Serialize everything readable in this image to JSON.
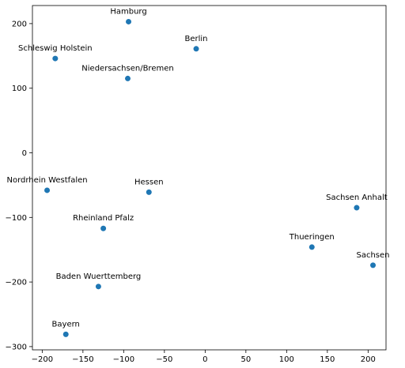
{
  "chart_data": {
    "type": "scatter",
    "title": "",
    "xlabel": "",
    "ylabel": "",
    "xlim": [
      -212,
      222
    ],
    "ylim": [
      -305,
      228
    ],
    "xticks": [
      -200,
      -150,
      -100,
      -50,
      0,
      50,
      100,
      150,
      200
    ],
    "yticks": [
      -300,
      -200,
      -100,
      0,
      100,
      200
    ],
    "grid": false,
    "marker_color": "#1f77b4",
    "points": [
      {
        "label": "Hamburg",
        "x": -94,
        "y": 203
      },
      {
        "label": "Berlin",
        "x": -11,
        "y": 161
      },
      {
        "label": "Schleswig Holstein",
        "x": -184,
        "y": 146
      },
      {
        "label": "Niedersachsen/Bremen",
        "x": -95,
        "y": 115
      },
      {
        "label": "Nordrhein Westfalen",
        "x": -194,
        "y": -58
      },
      {
        "label": "Hessen",
        "x": -69,
        "y": -61
      },
      {
        "label": "Sachsen Anhalt",
        "x": 186,
        "y": -85
      },
      {
        "label": "Rheinland Pfalz",
        "x": -125,
        "y": -117
      },
      {
        "label": "Thueringen",
        "x": 131,
        "y": -146
      },
      {
        "label": "Sachsen",
        "x": 206,
        "y": -174
      },
      {
        "label": "Baden Wuerttemberg",
        "x": -131,
        "y": -207
      },
      {
        "label": "Bayern",
        "x": -171,
        "y": -281
      }
    ]
  }
}
